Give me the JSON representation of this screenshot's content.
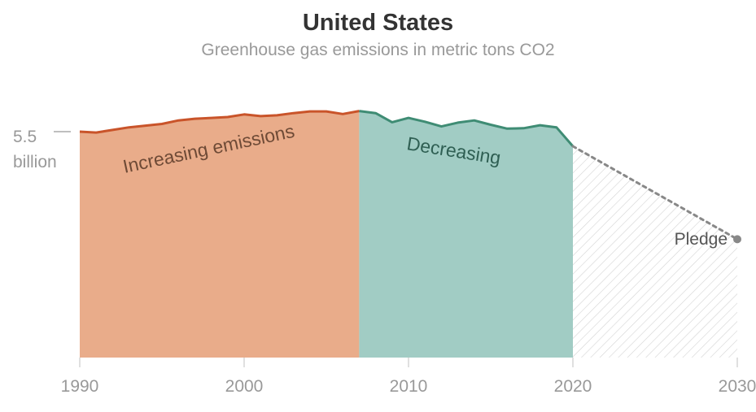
{
  "chart_data": {
    "type": "area",
    "title": "United States",
    "subtitle": "Greenhouse gas emissions in metric tons CO2",
    "y_tick": {
      "value": 5.5,
      "label_line1": "5.5",
      "label_line2": "billion"
    },
    "x_ticks": [
      1990,
      2000,
      2010,
      2020,
      2030
    ],
    "x": [
      1990,
      1991,
      1992,
      1993,
      1994,
      1995,
      1996,
      1997,
      1998,
      1999,
      2000,
      2001,
      2002,
      2003,
      2004,
      2005,
      2006,
      2007,
      2008,
      2009,
      2010,
      2011,
      2012,
      2013,
      2014,
      2015,
      2016,
      2017,
      2018,
      2019,
      2020
    ],
    "values": [
      5.5,
      5.48,
      5.54,
      5.6,
      5.64,
      5.68,
      5.76,
      5.8,
      5.82,
      5.84,
      5.9,
      5.86,
      5.88,
      5.93,
      5.97,
      5.97,
      5.91,
      5.98,
      5.93,
      5.72,
      5.82,
      5.73,
      5.62,
      5.71,
      5.76,
      5.66,
      5.57,
      5.58,
      5.65,
      5.6,
      5.16
    ],
    "regions": [
      {
        "label": "Increasing emissions",
        "from": 1990,
        "to": 2007,
        "fill": "#e9ac8a",
        "line": "#c9542a"
      },
      {
        "label": "Decreasing",
        "from": 2007,
        "to": 2020,
        "fill": "#a1ccc4",
        "line": "#3f8c74"
      }
    ],
    "pledge": {
      "label": "Pledge",
      "from": 2020,
      "to": 2030,
      "value_2030": 3.0,
      "color": "#888888"
    },
    "y_baseline": 0
  }
}
